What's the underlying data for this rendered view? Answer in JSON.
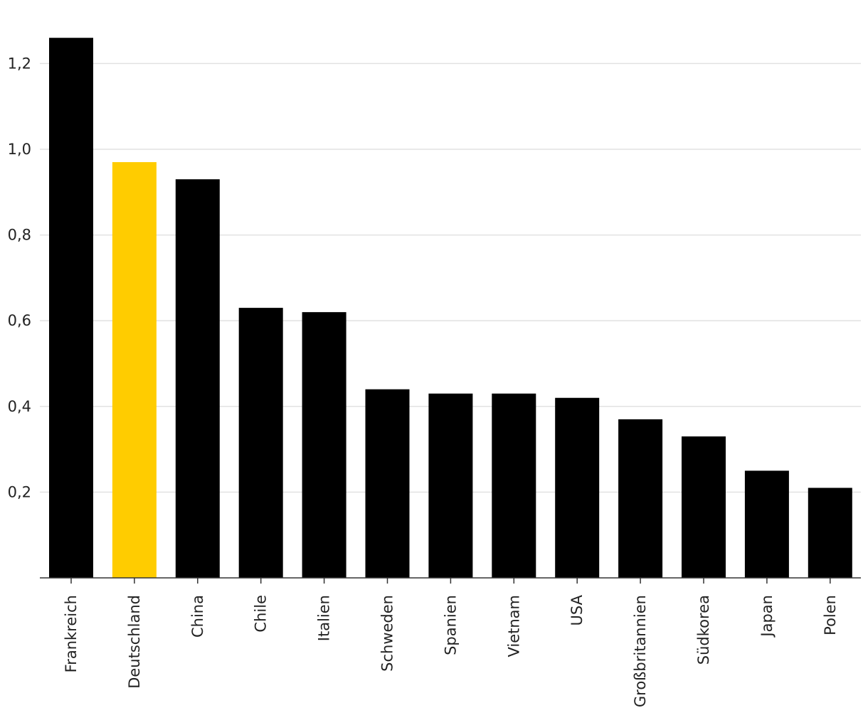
{
  "chart_data": {
    "type": "bar",
    "title": "",
    "xlabel": "",
    "ylabel": "",
    "categories": [
      "Frankreich",
      "Deutschland",
      "China",
      "Chile",
      "Italien",
      "Schweden",
      "Spanien",
      "Vietnam",
      "USA",
      "Großbritannien",
      "Südkorea",
      "Japan",
      "Polen"
    ],
    "values": [
      1.26,
      0.97,
      0.93,
      0.63,
      0.62,
      0.44,
      0.43,
      0.43,
      0.42,
      0.37,
      0.33,
      0.25,
      0.21
    ],
    "ylim": [
      0,
      1.26
    ],
    "yticks": [
      0.2,
      0.4,
      0.6,
      0.8,
      1.0,
      1.2
    ],
    "ytick_labels": [
      "0,2",
      "0,4",
      "0,6",
      "0,8",
      "1,0",
      "1,2"
    ],
    "grid": true,
    "colors": {
      "default": "#000000",
      "highlight": "#ffcc00",
      "highlight_category": "Deutschland"
    }
  }
}
